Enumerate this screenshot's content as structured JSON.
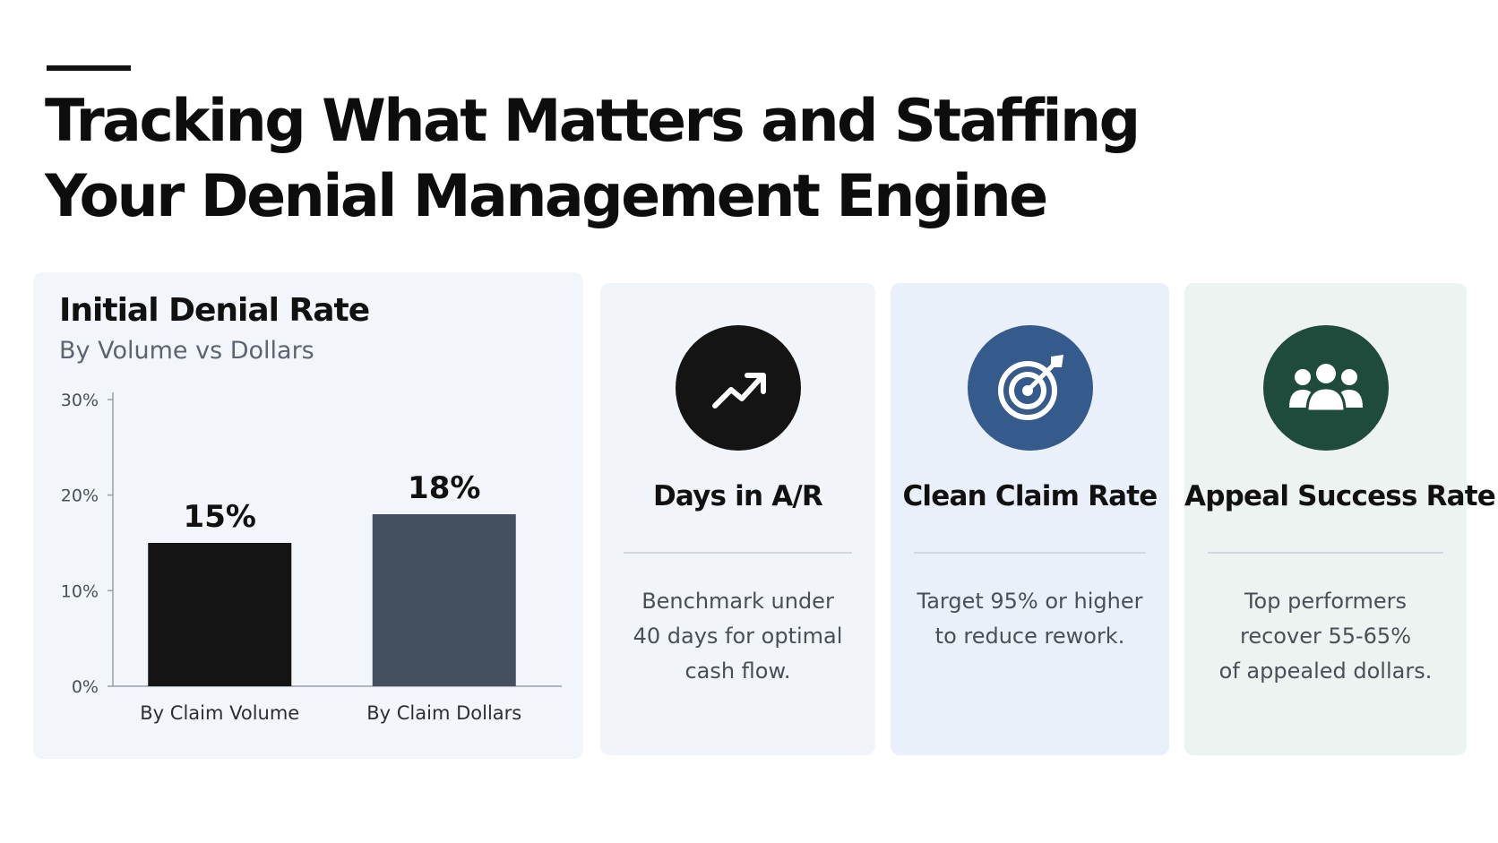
{
  "page": {
    "title_lines": [
      "Tracking What Matters and Staffing",
      "Your Denial Management Engine"
    ]
  },
  "chart_data": {
    "type": "bar",
    "title": "Initial Denial Rate",
    "subtitle": "By Volume vs Dollars",
    "categories": [
      "By Claim Volume",
      "By Claim Dollars"
    ],
    "values": [
      15,
      18
    ],
    "value_labels": [
      "15%",
      "18%"
    ],
    "bar_colors": [
      "#141414",
      "#44505f"
    ],
    "ylim": [
      0,
      30
    ],
    "yticks": [
      0,
      10,
      20,
      30
    ],
    "ytick_labels": [
      "0%",
      "10%",
      "20%",
      "30%"
    ],
    "xlabel": "",
    "ylabel": "",
    "grid": false,
    "legend": "none"
  },
  "metrics": [
    {
      "icon": "trending-up-icon",
      "icon_color": "#141414",
      "label": "Days in A/R",
      "description_lines": [
        "Benchmark under",
        "40 days for optimal",
        "cash flow."
      ]
    },
    {
      "icon": "target-icon",
      "icon_color": "#355a8c",
      "label": "Clean Claim Rate",
      "description_lines": [
        "Target 95% or higher",
        "to reduce rework."
      ]
    },
    {
      "icon": "users-icon",
      "icon_color": "#1e4b3b",
      "label": "Appeal Success Rate",
      "description_lines": [
        "Top performers",
        "recover 55-65%",
        "of appealed dollars."
      ]
    }
  ]
}
